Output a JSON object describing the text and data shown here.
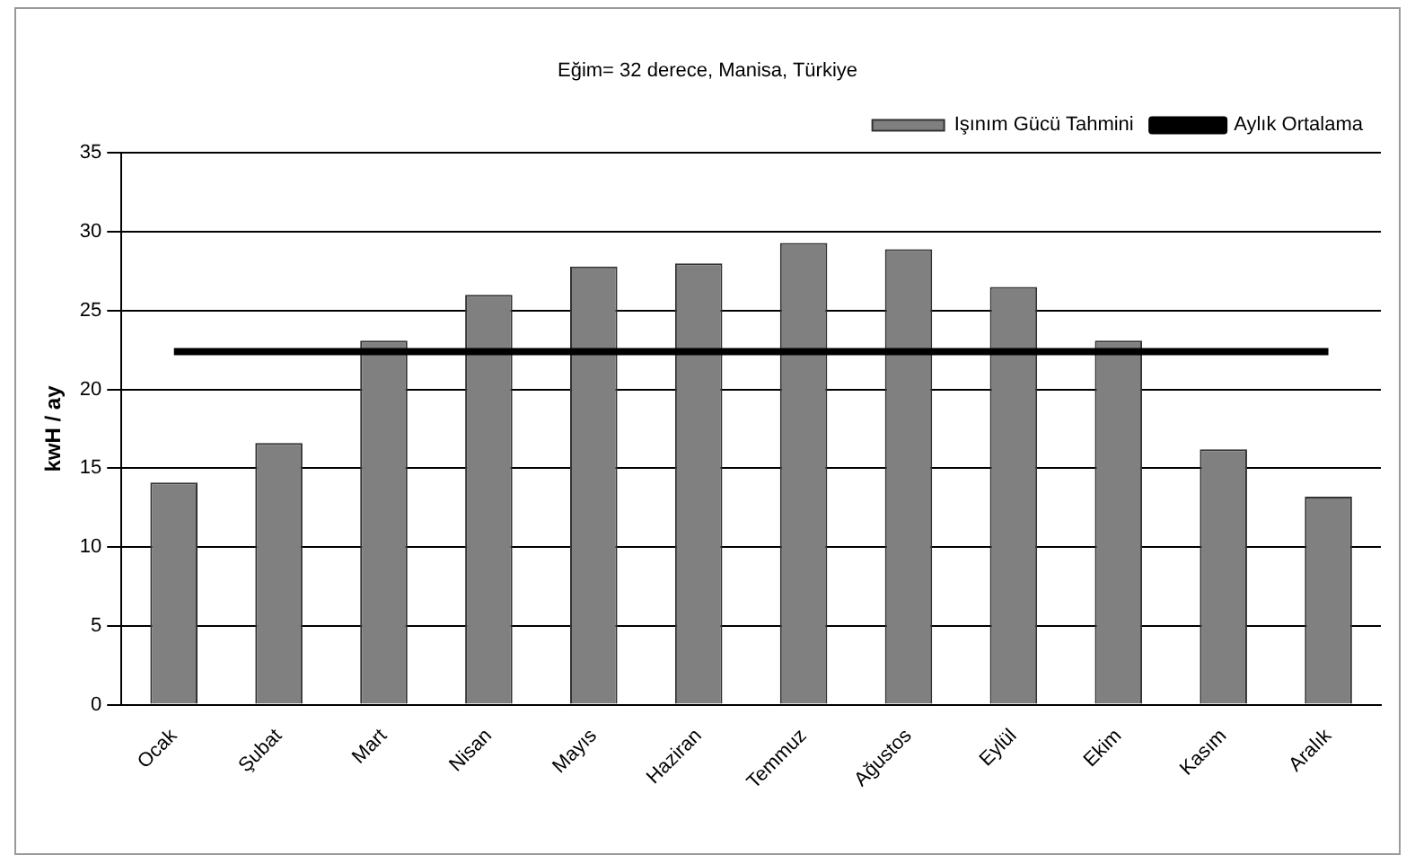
{
  "chart_data": {
    "type": "bar",
    "title": "Eğim= 32 derece, Manisa, Türkiye",
    "ylabel": "kwH / ay",
    "categories": [
      "Ocak",
      "Şubat",
      "Mart",
      "Nisan",
      "Mayıs",
      "Haziran",
      "Temmuz",
      "Ağustos",
      "Eylül",
      "Ekim",
      "Kasım",
      "Aralık"
    ],
    "series": [
      {
        "name": "Işınım Gücü Tahmini",
        "color": "#808080",
        "values": [
          14.1,
          16.6,
          23.1,
          26.0,
          27.8,
          28.0,
          29.3,
          28.9,
          26.5,
          23.1,
          16.2,
          13.2
        ]
      },
      {
        "name": "Aylık Ortalama",
        "type": "line",
        "color": "#000000",
        "values": [
          22.4,
          22.4,
          22.4,
          22.4,
          22.4,
          22.4,
          22.4,
          22.4,
          22.4,
          22.4,
          22.4,
          22.4
        ]
      }
    ],
    "ylim": [
      0,
      35
    ],
    "yticks": [
      0,
      5,
      10,
      15,
      20,
      25,
      30,
      35
    ],
    "grid": "y",
    "legend": "top right",
    "marker": "none",
    "line_style": "solid"
  }
}
